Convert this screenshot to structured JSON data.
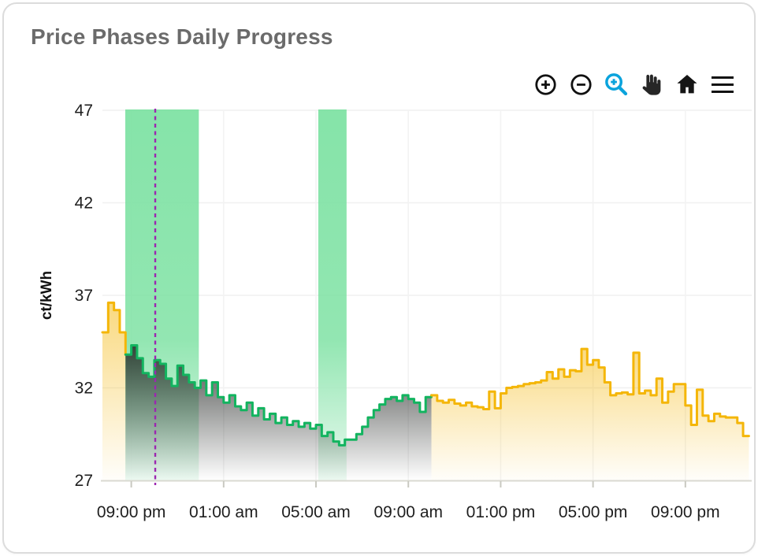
{
  "card": {
    "title": "Price Phases Daily Progress"
  },
  "toolbar": {
    "items": [
      {
        "icon": "zoom-in-icon",
        "label": "Zoom In"
      },
      {
        "icon": "zoom-out-icon",
        "label": "Zoom Out"
      },
      {
        "icon": "selection-zoom-icon",
        "label": "Selection Zoom",
        "active_color": "#0AA3DC"
      },
      {
        "icon": "pan-hand-icon",
        "label": "Panning"
      },
      {
        "icon": "home-icon",
        "label": "Reset Zoom"
      },
      {
        "icon": "menu-icon",
        "label": "Menu"
      }
    ]
  },
  "colors": {
    "title_text": "#6B6B6B",
    "axis_text": "#1E1E1E",
    "yellow_line": "#F4B609",
    "green_line": "#12B45F",
    "dark_fill": "#232624",
    "green_band": "#7FE2A4",
    "now_line": "#9C27B0",
    "gridline": "#F0F0F0",
    "axis_line": "#D9D9D1"
  },
  "chart_data": {
    "type": "line",
    "step": true,
    "title": "Price Phases Daily Progress",
    "xlabel": "",
    "ylabel": "ct/kWh",
    "ylim": [
      27,
      47
    ],
    "yticks": [
      47,
      42,
      37,
      32,
      27
    ],
    "xticks": [
      "09:00 pm",
      "01:00 am",
      "05:00 am",
      "09:00 am",
      "01:00 pm",
      "05:00 pm",
      "09:00 pm"
    ],
    "xtick_idx": [
      5,
      21,
      37,
      53,
      69,
      85,
      101
    ],
    "grid": true,
    "legend": "none",
    "series_start": "19:45",
    "interval_minutes": 15,
    "unit": "ct/kWh",
    "values": [
      35.0,
      36.6,
      36.2,
      35.0,
      33.8,
      34.3,
      33.6,
      32.8,
      32.6,
      33.5,
      33.3,
      32.5,
      32.1,
      33.2,
      32.7,
      32.3,
      32.0,
      32.4,
      31.6,
      32.3,
      31.5,
      31.2,
      31.6,
      31.0,
      30.8,
      31.2,
      30.5,
      30.9,
      30.3,
      30.6,
      30.1,
      30.4,
      30.0,
      30.2,
      29.9,
      30.1,
      29.8,
      30.0,
      29.4,
      29.6,
      29.1,
      28.9,
      29.2,
      29.2,
      29.5,
      29.9,
      30.4,
      30.8,
      31.1,
      31.4,
      31.5,
      31.3,
      31.6,
      31.4,
      31.2,
      30.7,
      31.5,
      31.6,
      31.3,
      31.2,
      31.35,
      31.15,
      31.05,
      31.2,
      31.0,
      30.95,
      30.85,
      31.8,
      30.9,
      31.7,
      32.0,
      32.05,
      32.1,
      32.2,
      32.25,
      32.3,
      32.4,
      32.85,
      32.5,
      33.0,
      32.6,
      32.95,
      32.9,
      34.1,
      33.25,
      33.5,
      33.1,
      32.3,
      31.6,
      31.7,
      31.75,
      31.65,
      33.9,
      31.7,
      31.85,
      31.6,
      32.5,
      31.2,
      31.8,
      32.2,
      32.2,
      31.05,
      30.0,
      31.9,
      30.5,
      30.2,
      30.6,
      30.45,
      30.4,
      30.4,
      30.1,
      29.4
    ],
    "phases": [
      {
        "name": "yellow-evening",
        "color": "#F4B609",
        "from_index": 0,
        "to_index": 4,
        "from": "19:45",
        "to": "20:45"
      },
      {
        "name": "green-phase",
        "color": "#12B45F",
        "from_index": 4,
        "to_index": 57,
        "from": "20:45",
        "to": "10:00"
      },
      {
        "name": "yellow-day",
        "color": "#F4B609",
        "from_index": 57,
        "to_index": 112,
        "from": "10:00",
        "to": "23:45"
      }
    ],
    "green_windows": [
      {
        "from": "20:45",
        "to": "23:55",
        "from_idx": 3.96,
        "to_idx": 16.7
      },
      {
        "from": "05:05",
        "to": "06:20",
        "from_idx": 37.4,
        "to_idx": 42.3
      }
    ],
    "now_marker": {
      "time": "22:00",
      "idx": 9.15,
      "color": "#9C27B0",
      "style": "dashed"
    }
  }
}
